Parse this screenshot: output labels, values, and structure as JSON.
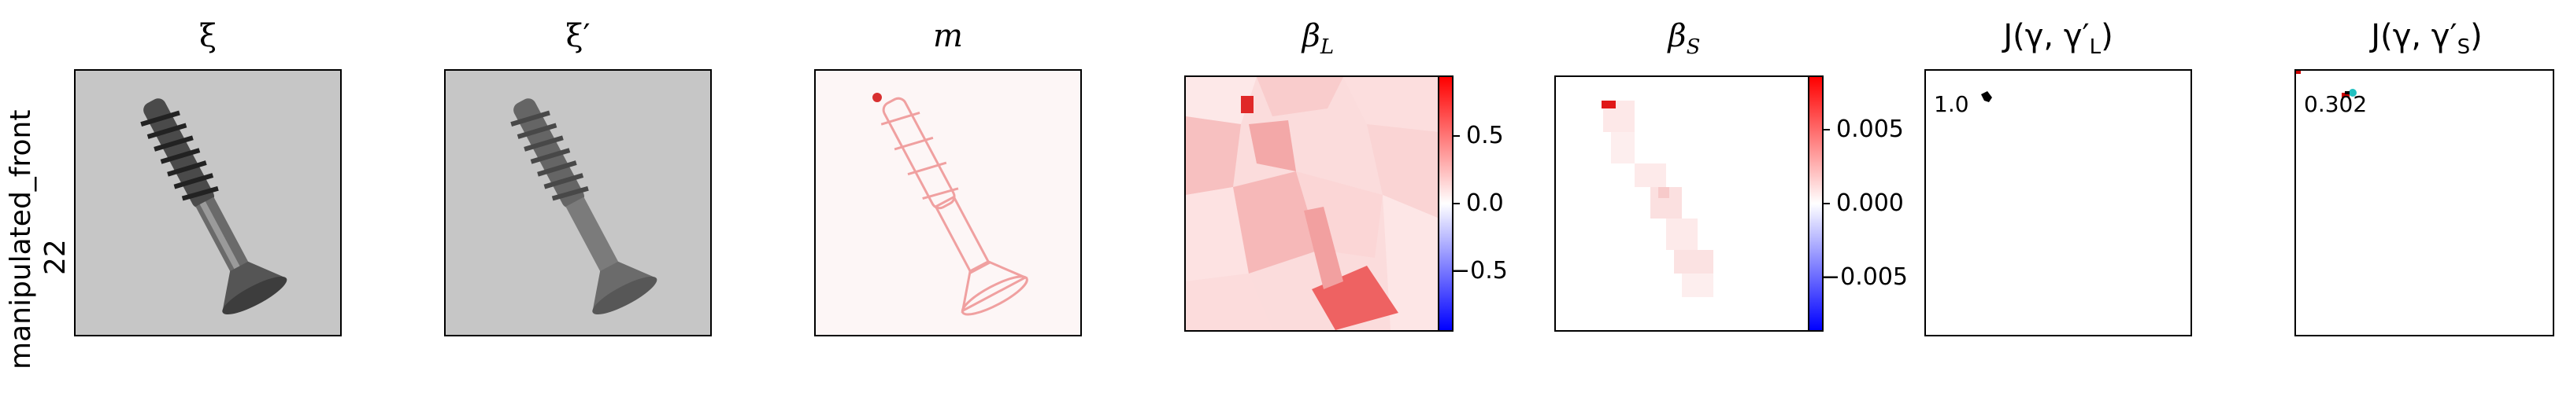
{
  "row_label": {
    "line1": "manipulated_front",
    "line2": "22"
  },
  "panels": [
    {
      "title": "ξ"
    },
    {
      "title": "ξ′"
    },
    {
      "title": "m"
    },
    {
      "title": "β_L",
      "title_main": "β",
      "title_sub": "L"
    },
    {
      "title": "β_S",
      "title_main": "β",
      "title_sub": "S"
    },
    {
      "title": "J(γ, γ′_L)",
      "title_pre": "J(γ, γ′",
      "title_sub": "L",
      "title_post": ")"
    },
    {
      "title": "J(γ, γ′_S)",
      "title_pre": "J(γ, γ′",
      "title_sub": "S",
      "title_post": ")"
    }
  ],
  "colorbar_L": {
    "ticks": [
      "0.5",
      "0.0",
      "−0.5"
    ]
  },
  "colorbar_S": {
    "ticks": [
      "0.005",
      "0.000",
      "−0.005"
    ]
  },
  "jl_value": "1.0",
  "js_value": "0.302"
}
